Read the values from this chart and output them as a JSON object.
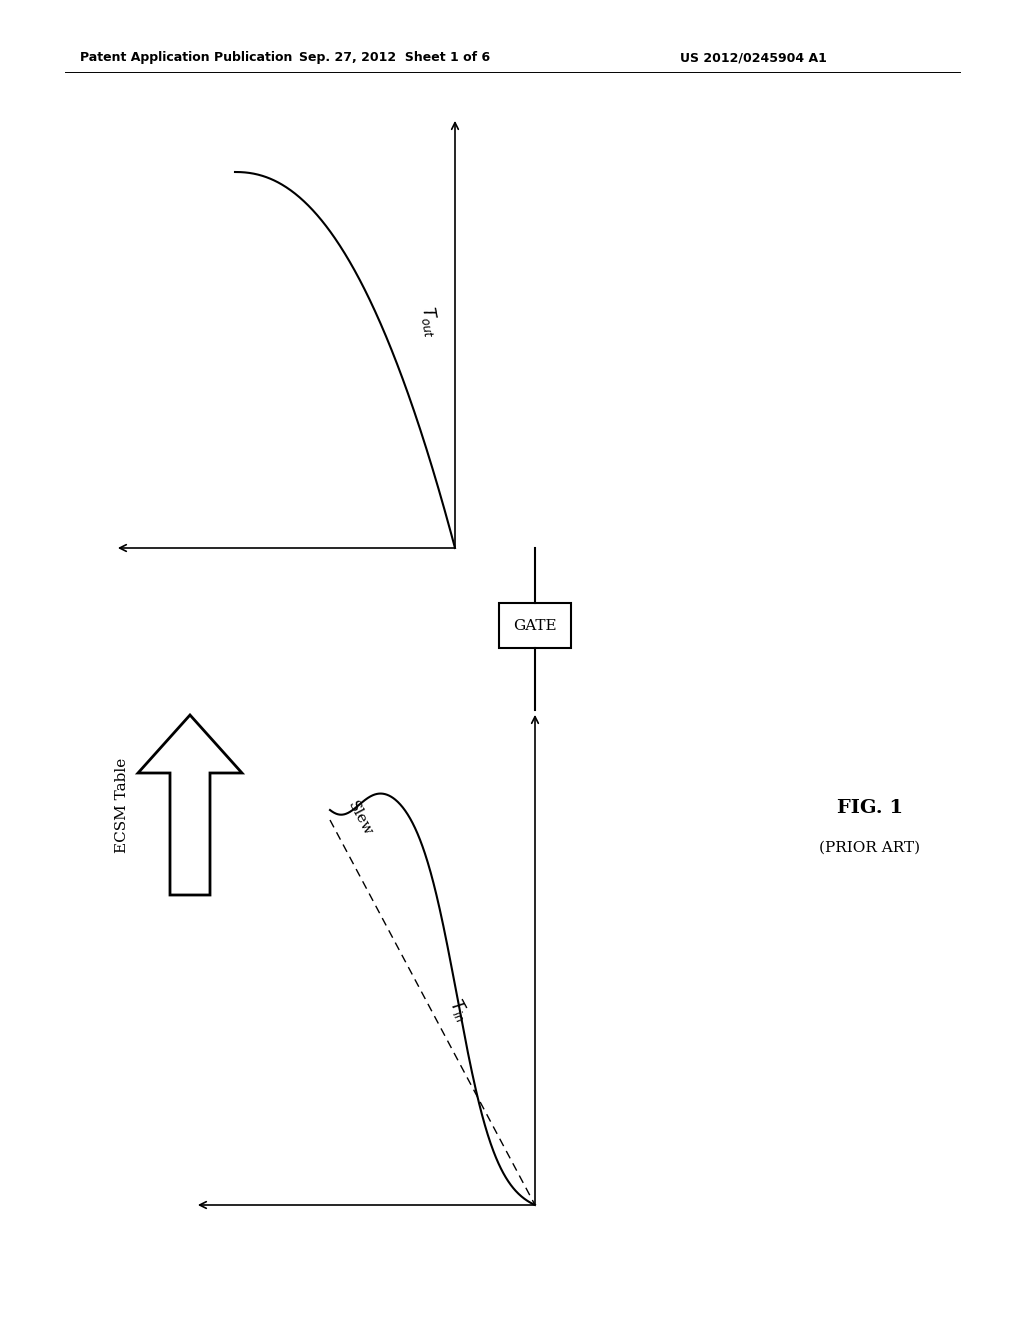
{
  "header_left": "Patent Application Publication",
  "header_center": "Sep. 27, 2012  Sheet 1 of 6",
  "header_right": "US 2012/0245904 A1",
  "fig_label": "FIG. 1",
  "fig_sublabel": "(PRIOR ART)",
  "gate_label": "GATE",
  "ecsm_label": "ECSM Table",
  "slew_label": "Slew",
  "bg_color": "#ffffff",
  "line_color": "#000000",
  "font_size_header": 9,
  "font_size_label": 11
}
